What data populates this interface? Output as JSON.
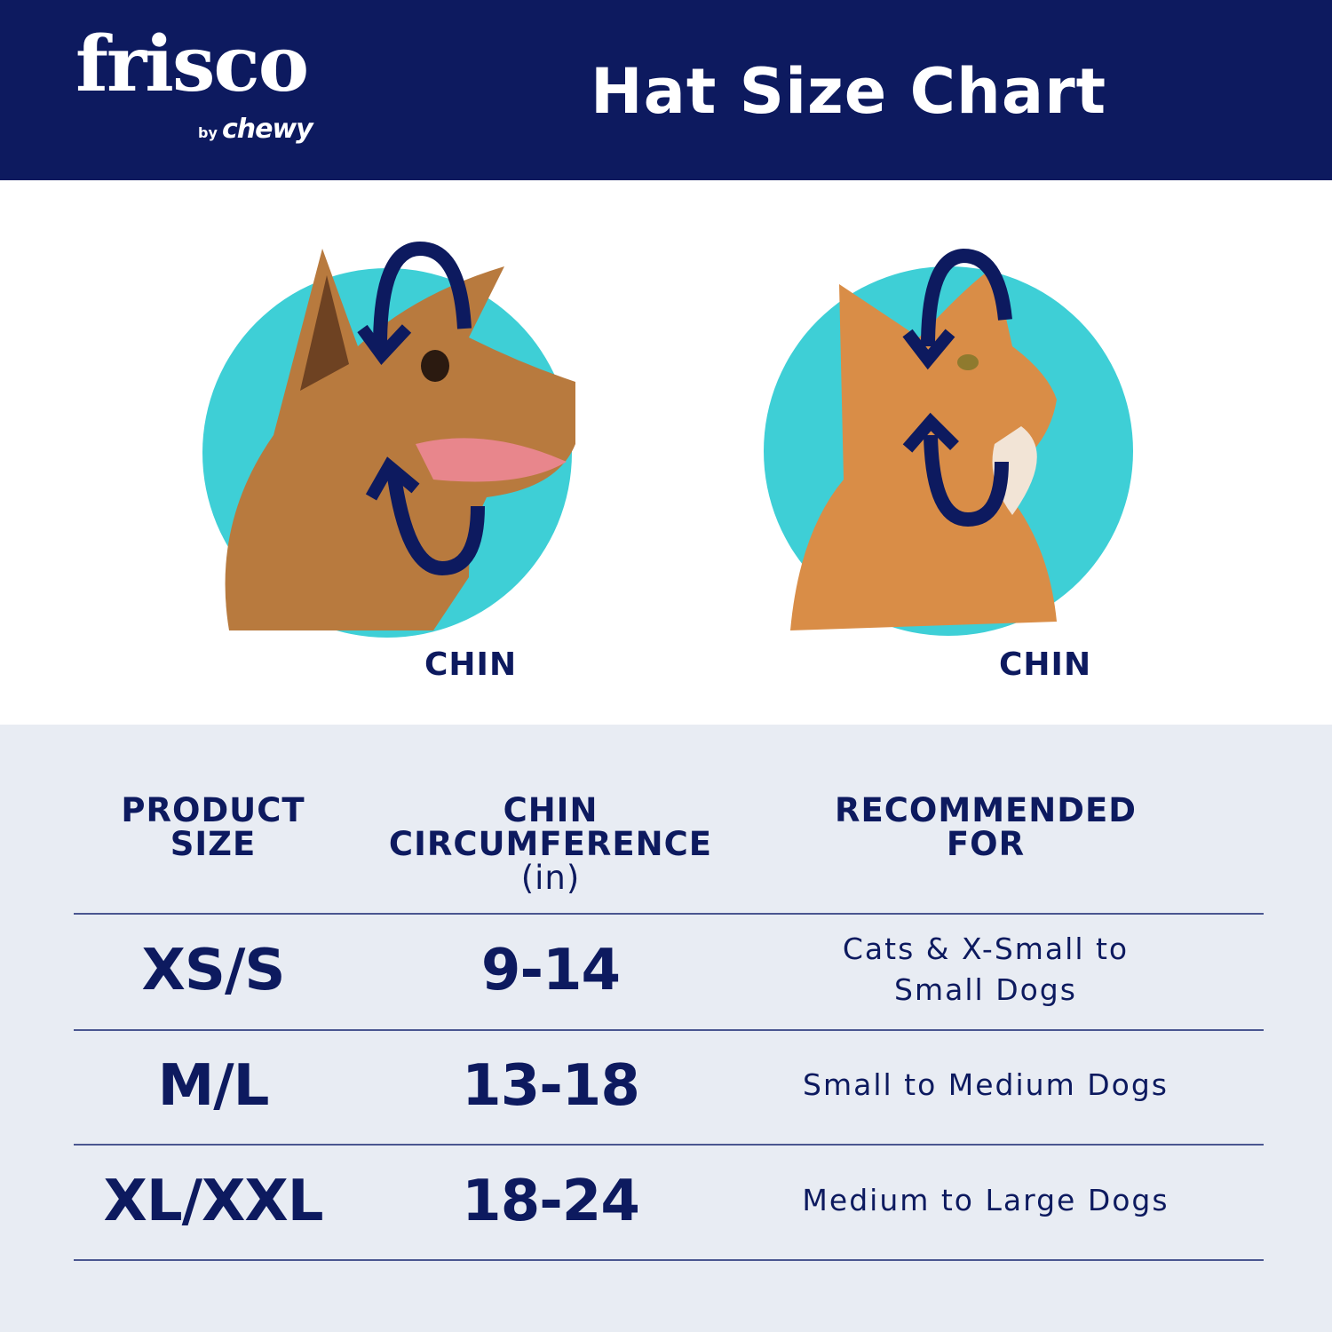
{
  "header": {
    "logo": {
      "brand": "frisco",
      "by": "by",
      "parent": "chewy"
    },
    "title": "Hat Size Chart"
  },
  "colors": {
    "navy": "#0d1a5f",
    "teal": "#3ecfd6",
    "table_bg": "#e8ecf3"
  },
  "illustrations": [
    {
      "animal": "dog",
      "label": "CHIN"
    },
    {
      "animal": "cat",
      "label": "CHIN"
    }
  ],
  "table": {
    "headers": [
      {
        "lines": [
          "PRODUCT",
          "SIZE"
        ]
      },
      {
        "lines": [
          "CHIN",
          "CIRCUMFERENCE"
        ],
        "unit": "(in)"
      },
      {
        "lines": [
          "RECOMMENDED",
          "FOR"
        ]
      }
    ],
    "rows": [
      {
        "size": "XS/S",
        "chin": "9-14",
        "recommended": [
          "Cats & X-Small to",
          "Small Dogs"
        ]
      },
      {
        "size": "M/L",
        "chin": "13-18",
        "recommended": [
          "Small to Medium Dogs"
        ]
      },
      {
        "size": "XL/XXL",
        "chin": "18-24",
        "recommended": [
          "Medium to Large Dogs"
        ]
      }
    ]
  }
}
